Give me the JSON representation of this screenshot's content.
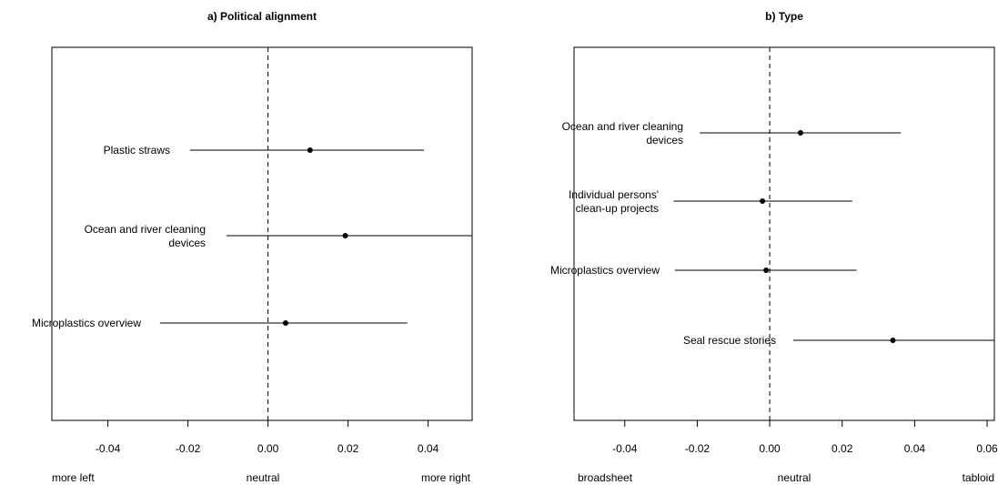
{
  "chart_data": [
    {
      "type": "forest",
      "title": "a) Political alignment",
      "xlabel_left": "more left",
      "xlabel_center": "neutral",
      "xlabel_right": "more right",
      "xlim": [
        -0.054,
        0.051
      ],
      "ticks": [
        -0.04,
        -0.02,
        0.0,
        0.02,
        0.04
      ],
      "tick_labels": [
        "-0.04",
        "-0.02",
        "0.00",
        "0.02",
        "0.04"
      ],
      "reference_line": 0,
      "items": [
        {
          "label": "Plastic straws",
          "estimate": 0.0105,
          "lower": -0.0195,
          "upper": 0.039
        },
        {
          "label": "Ocean and river cleaning\ndevices",
          "estimate": 0.0193,
          "lower": -0.0104,
          "upper": 0.051
        },
        {
          "label": "Microplastics overview",
          "estimate": 0.0044,
          "lower": -0.027,
          "upper": 0.0348
        }
      ]
    },
    {
      "type": "forest",
      "title": "b) Type",
      "xlabel_left": "broadsheet",
      "xlabel_center": "neutral",
      "xlabel_right": "tabloid",
      "xlim": [
        -0.054,
        0.062
      ],
      "ticks": [
        -0.04,
        -0.02,
        0.0,
        0.02,
        0.04,
        0.06
      ],
      "tick_labels": [
        "-0.04",
        "-0.02",
        "0.00",
        "0.02",
        "0.04",
        "0.06"
      ],
      "reference_line": 0,
      "items": [
        {
          "label": "Ocean and river cleaning\ndevices",
          "estimate": 0.0085,
          "lower": -0.0193,
          "upper": 0.0362
        },
        {
          "label": "Individual persons'\nclean-up projects",
          "estimate": -0.002,
          "lower": -0.0265,
          "upper": 0.0228
        },
        {
          "label": "Microplastics overview",
          "estimate": -0.001,
          "lower": -0.0262,
          "upper": 0.024
        },
        {
          "label": "Seal rescue stories",
          "estimate": 0.034,
          "lower": 0.0065,
          "upper": 0.0621
        }
      ]
    }
  ]
}
